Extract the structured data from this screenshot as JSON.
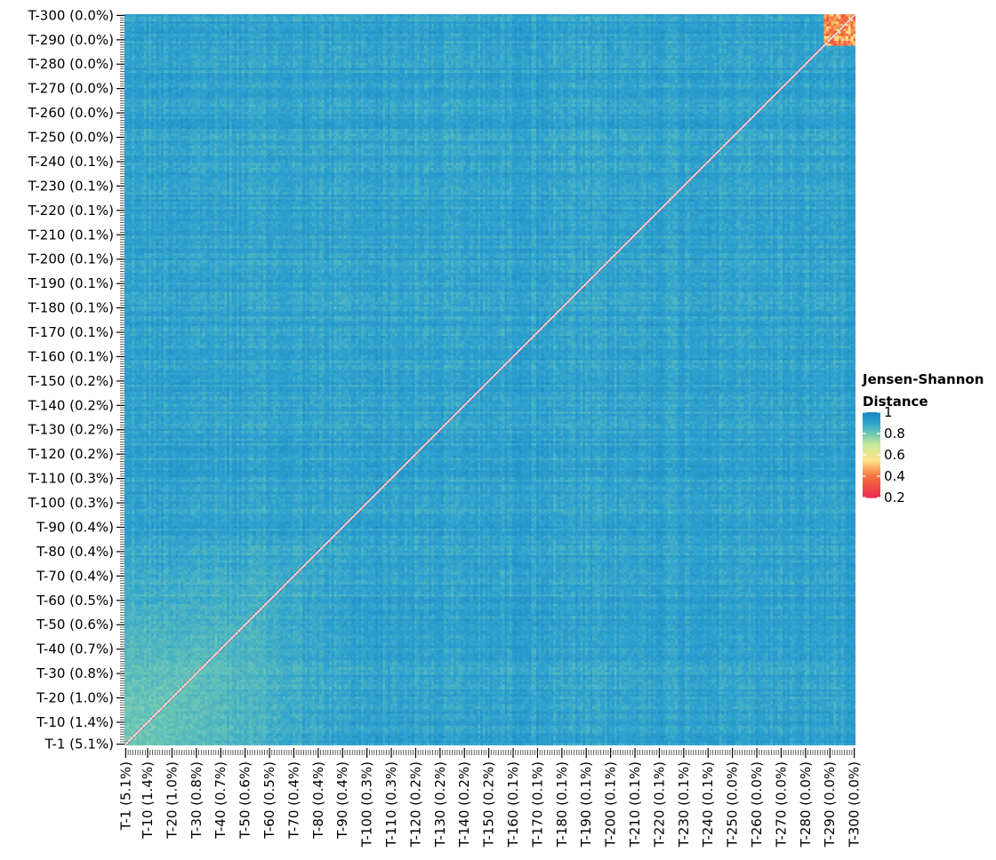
{
  "chart_data": {
    "type": "heatmap",
    "title": "",
    "xlabel": "",
    "ylabel": "",
    "n_topics": 300,
    "x_tick_labels": [
      "T-1 (5.1%)",
      "T-10 (1.4%)",
      "T-20 (1.0%)",
      "T-30 (0.8%)",
      "T-40 (0.7%)",
      "T-50 (0.6%)",
      "T-60 (0.5%)",
      "T-70 (0.4%)",
      "T-80 (0.4%)",
      "T-90 (0.4%)",
      "T-100 (0.3%)",
      "T-110 (0.3%)",
      "T-120 (0.2%)",
      "T-130 (0.2%)",
      "T-140 (0.2%)",
      "T-150 (0.2%)",
      "T-160 (0.1%)",
      "T-170 (0.1%)",
      "T-180 (0.1%)",
      "T-190 (0.1%)",
      "T-200 (0.1%)",
      "T-210 (0.1%)",
      "T-220 (0.1%)",
      "T-230 (0.1%)",
      "T-240 (0.1%)",
      "T-250 (0.0%)",
      "T-260 (0.0%)",
      "T-270 (0.0%)",
      "T-280 (0.0%)",
      "T-290 (0.0%)",
      "T-300 (0.0%)"
    ],
    "y_tick_labels": [
      "T-1 (5.1%)",
      "T-10 (1.4%)",
      "T-20 (1.0%)",
      "T-30 (0.8%)",
      "T-40 (0.7%)",
      "T-50 (0.6%)",
      "T-60 (0.5%)",
      "T-70 (0.4%)",
      "T-80 (0.4%)",
      "T-90 (0.4%)",
      "T-100 (0.3%)",
      "T-110 (0.3%)",
      "T-120 (0.2%)",
      "T-130 (0.2%)",
      "T-140 (0.2%)",
      "T-150 (0.2%)",
      "T-160 (0.1%)",
      "T-170 (0.1%)",
      "T-180 (0.1%)",
      "T-190 (0.1%)",
      "T-200 (0.1%)",
      "T-210 (0.1%)",
      "T-220 (0.1%)",
      "T-230 (0.1%)",
      "T-240 (0.1%)",
      "T-250 (0.0%)",
      "T-260 (0.0%)",
      "T-270 (0.0%)",
      "T-280 (0.0%)",
      "T-290 (0.0%)",
      "T-300 (0.0%)"
    ],
    "tick_topic_numbers": [
      1,
      10,
      20,
      30,
      40,
      50,
      60,
      70,
      80,
      90,
      100,
      110,
      120,
      130,
      140,
      150,
      160,
      170,
      180,
      190,
      200,
      210,
      220,
      230,
      240,
      250,
      260,
      270,
      280,
      290,
      300
    ],
    "value_range": [
      0.2,
      1.0
    ],
    "diagonal_value": 0.0,
    "typical_value": 0.9,
    "low_distance_regions": [
      {
        "description": "lower-left block among high-prevalence topics",
        "topics": [
          1,
          90
        ],
        "value": 0.72
      },
      {
        "description": "upper-right block among lowest-prevalence topics",
        "topics": [
          288,
          300
        ],
        "value": 0.3
      }
    ],
    "legend": {
      "title": "Jensen-Shannon Distance",
      "title_lines": [
        "Jensen-Shannon",
        "Distance"
      ],
      "labels": [
        "1",
        "0.8",
        "0.6",
        "0.4",
        "0.2"
      ],
      "values": [
        1.0,
        0.8,
        0.6,
        0.4,
        0.2
      ],
      "placement": "right"
    },
    "colorscale": [
      {
        "value": 0.2,
        "color": "#e8294f"
      },
      {
        "value": 0.4,
        "color": "#f4743c"
      },
      {
        "value": 0.55,
        "color": "#fbe58b"
      },
      {
        "value": 0.7,
        "color": "#c8e89a"
      },
      {
        "value": 0.8,
        "color": "#6cc6b4"
      },
      {
        "value": 0.9,
        "color": "#2ea2cf"
      },
      {
        "value": 1.0,
        "color": "#1a86c2"
      }
    ]
  }
}
